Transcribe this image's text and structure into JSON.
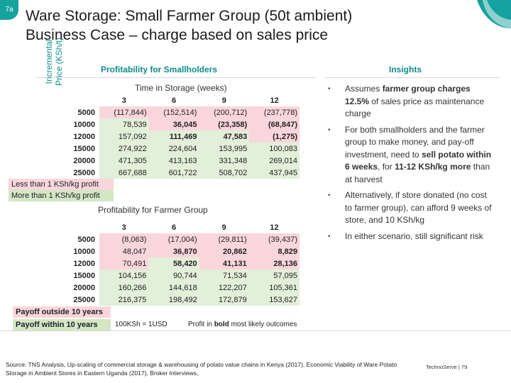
{
  "slide": {
    "badge": "7a",
    "title_line1": "Ware Storage: Small Farmer Group (50t ambient)",
    "title_line2": "Business Case – charge based on sales price"
  },
  "left_panel": {
    "heading": "Profitability for Smallholders",
    "table1_title": "Time in Storage (weeks)",
    "ylabel_line1": "Incremental",
    "ylabel_line2": "Price (KSh/t)",
    "columns": [
      "3",
      "6",
      "9",
      "12"
    ],
    "table1_rows": [
      {
        "label": "5000",
        "cells": [
          "(117,844)",
          "(152,514)",
          "(200,712)",
          "(237,778)"
        ]
      },
      {
        "label": "10000",
        "cells": [
          "78,539",
          "36,045",
          "(23,358)",
          "(68,847)"
        ]
      },
      {
        "label": "12000",
        "cells": [
          "157,092",
          "111,469",
          "47,583",
          "(1,275)"
        ]
      },
      {
        "label": "15000",
        "cells": [
          "274,922",
          "224,604",
          "153,995",
          "100,083"
        ]
      },
      {
        "label": "20000",
        "cells": [
          "471,305",
          "413,163",
          "331,348",
          "269,014"
        ]
      },
      {
        "label": "25000",
        "cells": [
          "667,688",
          "601,722",
          "508,702",
          "437,945"
        ]
      }
    ],
    "legend1_pink": "Less than 1 KSh/kg profit",
    "legend1_green": "More than 1 KSh/kg profit",
    "table2_title": "Profitability for Farmer Group",
    "table2_rows": [
      {
        "label": "5000",
        "cells": [
          "(8,063)",
          "(17,004)",
          "(29,811)",
          "(39,437)"
        ]
      },
      {
        "label": "10000",
        "cells": [
          "48,047",
          "36,870",
          "20,862",
          "8,829"
        ]
      },
      {
        "label": "12000",
        "cells": [
          "70,491",
          "58,420",
          "41,131",
          "28,136"
        ]
      },
      {
        "label": "15000",
        "cells": [
          "104,156",
          "90,744",
          "71,534",
          "57,095"
        ]
      },
      {
        "label": "20000",
        "cells": [
          "160,266",
          "144,618",
          "122,207",
          "105,361"
        ]
      },
      {
        "label": "25000",
        "cells": [
          "216,375",
          "198,492",
          "172,879",
          "153,627"
        ]
      }
    ],
    "legend2_pink": "Payoff outside 10 years",
    "legend2_green": "Payoff within 10 years",
    "note_currency": "100KSh = 1USD",
    "note_bold_pre": "Profit in ",
    "note_bold_word": "bold",
    "note_bold_post": " most likely outcomes"
  },
  "right_panel": {
    "heading": "Insights",
    "items": [
      {
        "parts": [
          {
            "t": "Assumes ",
            "b": false
          },
          {
            "t": "farmer group charges 12.5% ",
            "b": true
          },
          {
            "t": "of sales price as maintenance charge",
            "b": false
          }
        ]
      },
      {
        "parts": [
          {
            "t": "For both smallholders and the farmer group to make money, and pay-off investment, need to ",
            "b": false
          },
          {
            "t": "sell potato within 6 weeks",
            "b": true
          },
          {
            "t": ", for ",
            "b": false
          },
          {
            "t": "11-12 KSh/kg more",
            "b": true
          },
          {
            "t": " than at harvest",
            "b": false
          }
        ]
      },
      {
        "parts": [
          {
            "t": "Alternatively, if store donated (no cost to farmer group), can afford 9 weeks of store, and 10 KSh/kg",
            "b": false
          }
        ]
      },
      {
        "parts": [
          {
            "t": "In either scenario, still significant risk",
            "b": false
          }
        ]
      }
    ]
  },
  "footer": {
    "source": "Source: TNS Analysis, Up-scaling of commercial storage & warehousing of potato value chains in Kenya (2017), Economic Viability of Ware Potato Storage in Ambient Stores in Eastern Uganda (2017), Broker Interviews,",
    "brand": "TechnoServe | 79"
  },
  "colors": {
    "accent": "#0f8c8a",
    "pink": "#f9d6dc",
    "green": "#e2efd9",
    "badge": "#16a3a0"
  }
}
